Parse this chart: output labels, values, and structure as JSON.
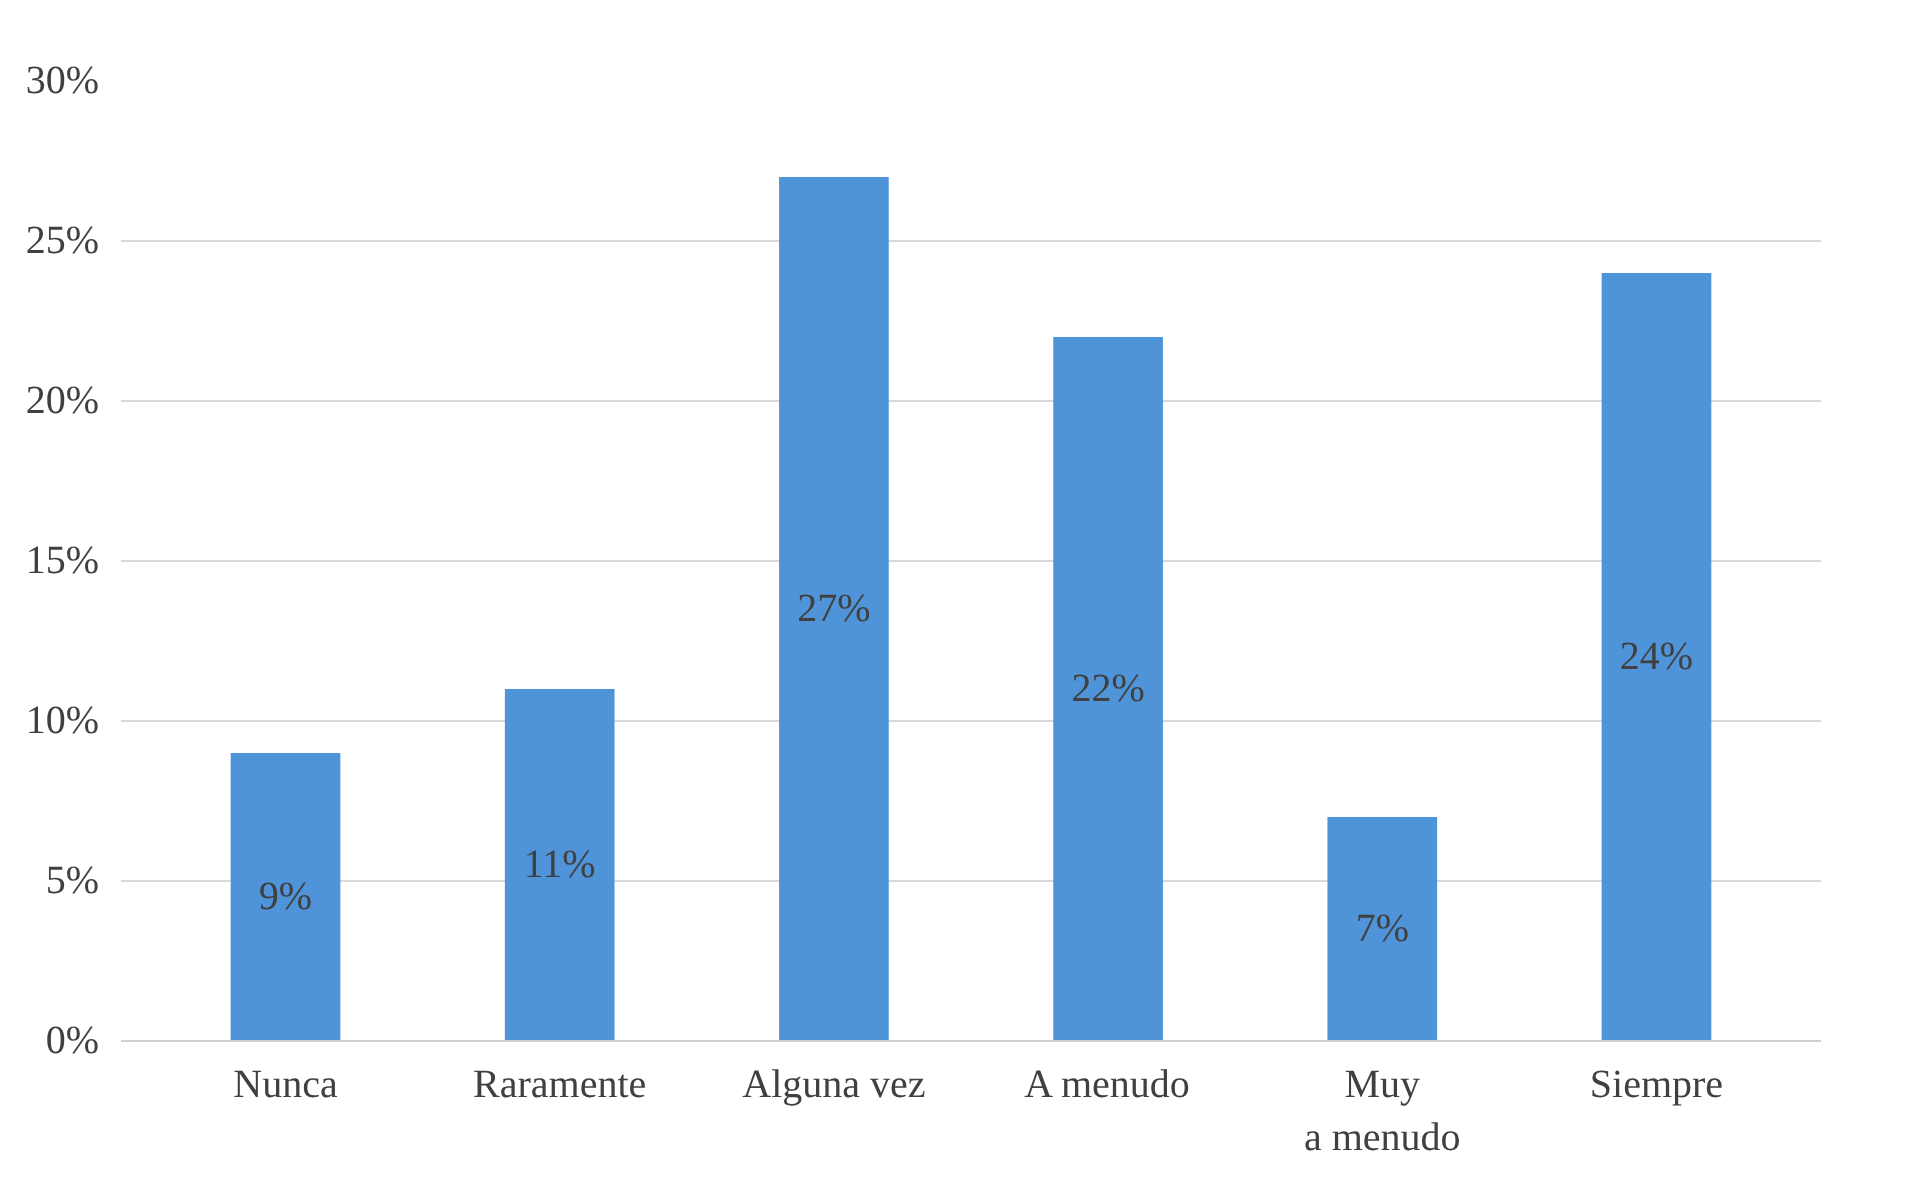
{
  "chart_data": {
    "type": "bar",
    "categories": [
      "Nunca",
      "Raramente",
      "Alguna vez",
      "A menudo",
      "Muy a menudo",
      "Siempre"
    ],
    "values": [
      9,
      11,
      27,
      22,
      7,
      24
    ],
    "value_labels": [
      "9%",
      "11%",
      "27%",
      "22%",
      "7%",
      "24%"
    ],
    "color": "#4f94d8",
    "ylim": [
      0,
      30
    ],
    "yticks": [
      {
        "value": 0,
        "label": "0%"
      },
      {
        "value": 5,
        "label": "5%"
      },
      {
        "value": 10,
        "label": "10%"
      },
      {
        "value": 15,
        "label": "15%"
      },
      {
        "value": 20,
        "label": "20%"
      },
      {
        "value": 25,
        "label": "25%"
      },
      {
        "value": 30,
        "label": "30%"
      }
    ],
    "grid": "y"
  }
}
